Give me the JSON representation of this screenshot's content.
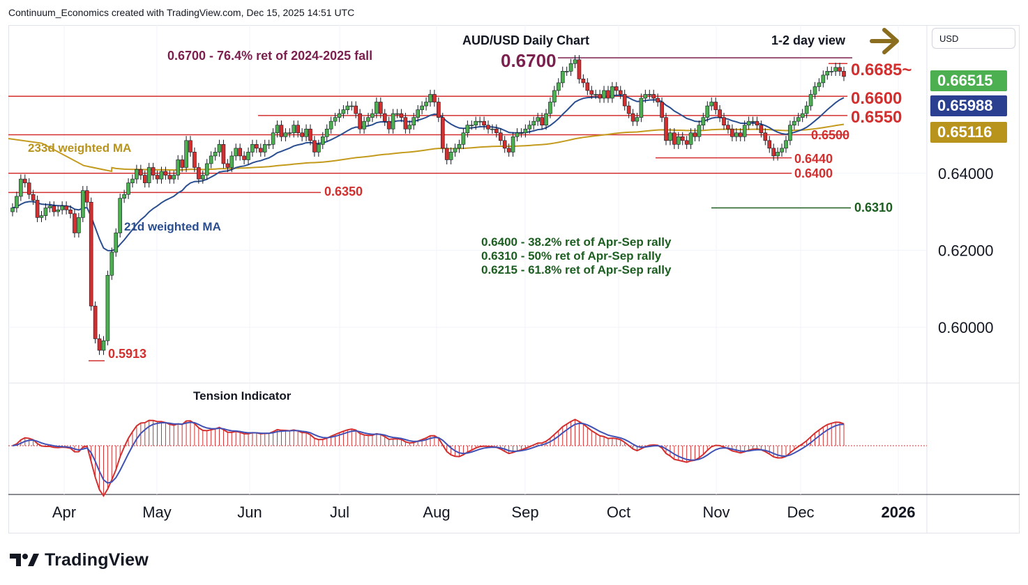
{
  "header": {
    "attribution": "Continuum_Economics created with TradingView.com, Dec 15, 2025 14:51 UTC"
  },
  "brand": {
    "name": "TradingView"
  },
  "price_scale": {
    "currency": "USD"
  },
  "chart_data": {
    "type": "candlestick",
    "title": "AUD/USD Daily Chart",
    "subtitle": "1-2 day view",
    "x_ticks": [
      "Apr",
      "May",
      "Jun",
      "Jul",
      "Aug",
      "Sep",
      "Oct",
      "Nov",
      "Dec",
      "2026"
    ],
    "y_ticks": [
      "0.64000",
      "0.62000",
      "0.60000"
    ],
    "y_tick_values": [
      0.64,
      0.62,
      0.6
    ],
    "ylim": [
      0.5855,
      0.6785
    ],
    "series": [
      {
        "name": "21d weighted MA",
        "color": "#2a4e8f"
      },
      {
        "name": "233d weighted MA",
        "color": "#c39a1c"
      }
    ],
    "price_badges": [
      {
        "label": "0.66515",
        "color": "#4caf50"
      },
      {
        "label": "0.65988",
        "color": "#2a3f8f"
      },
      {
        "label": "0.65116",
        "color": "#b8941c"
      }
    ],
    "levels": [
      {
        "value": 0.67,
        "label": "0.6700",
        "color": "#7b1f4f"
      },
      {
        "value": 0.6685,
        "label": "0.6685~",
        "color": "#d32f2f"
      },
      {
        "value": 0.66,
        "label": "0.6600",
        "color": "#d32f2f"
      },
      {
        "value": 0.655,
        "label": "0.6550",
        "color": "#d32f2f"
      },
      {
        "value": 0.65,
        "label": "0.6500",
        "color": "#d32f2f"
      },
      {
        "value": 0.644,
        "label": "0.6440",
        "color": "#d32f2f"
      },
      {
        "value": 0.64,
        "label": "0.6400",
        "color": "#d32f2f"
      },
      {
        "value": 0.635,
        "label": "0.6350",
        "color": "#d32f2f"
      },
      {
        "value": 0.631,
        "label": "0.6310",
        "color": "#1b5e20"
      },
      {
        "value": 0.5913,
        "label": "0.5913",
        "color": "#d32f2f"
      }
    ],
    "annotations": [
      "0.6700 - 76.4% ret of 2024-2025 fall",
      "0.6400 - 38.2% ret of Apr-Sep rally",
      "0.6310 - 50% ret of Apr-Sep rally",
      "0.6215 - 61.8% ret of Apr-Sep rally"
    ],
    "close": [
      0.631,
      0.634,
      0.6385,
      0.6375,
      0.6345,
      0.633,
      0.6285,
      0.629,
      0.631,
      0.6315,
      0.63,
      0.6305,
      0.6315,
      0.6305,
      0.6295,
      0.6245,
      0.6285,
      0.6355,
      0.6325,
      0.6055,
      0.597,
      0.594,
      0.5965,
      0.6135,
      0.6195,
      0.6245,
      0.6335,
      0.6345,
      0.6375,
      0.6385,
      0.641,
      0.6395,
      0.6375,
      0.6415,
      0.6395,
      0.6385,
      0.6405,
      0.6395,
      0.6385,
      0.6395,
      0.6435,
      0.6415,
      0.6485,
      0.6455,
      0.6415,
      0.6385,
      0.6395,
      0.6425,
      0.6445,
      0.6455,
      0.6475,
      0.6425,
      0.6415,
      0.6445,
      0.6465,
      0.6445,
      0.6435,
      0.6455,
      0.6475,
      0.6465,
      0.6455,
      0.6475,
      0.6475,
      0.6505,
      0.6525,
      0.6495,
      0.6505,
      0.6505,
      0.6525,
      0.6505,
      0.6495,
      0.6515,
      0.6485,
      0.6455,
      0.6475,
      0.6495,
      0.6515,
      0.6535,
      0.6545,
      0.6555,
      0.6565,
      0.6575,
      0.6575,
      0.6555,
      0.6515,
      0.6535,
      0.6545,
      0.6555,
      0.6585,
      0.6555,
      0.6535,
      0.6515,
      0.6555,
      0.6555,
      0.6545,
      0.6515,
      0.6525,
      0.6545,
      0.6565,
      0.6575,
      0.6585,
      0.6605,
      0.6585,
      0.6545,
      0.6465,
      0.6435,
      0.6455,
      0.6465,
      0.6475,
      0.6505,
      0.6525,
      0.6525,
      0.6535,
      0.6535,
      0.6525,
      0.6515,
      0.6515,
      0.6505,
      0.6485,
      0.6465,
      0.6455,
      0.6495,
      0.6505,
      0.6505,
      0.6515,
      0.6525,
      0.6535,
      0.6545,
      0.6525,
      0.6555,
      0.6585,
      0.6615,
      0.6635,
      0.6665,
      0.6665,
      0.6685,
      0.6695,
      0.6645,
      0.6635,
      0.6615,
      0.6605,
      0.6605,
      0.6595,
      0.6615,
      0.6595,
      0.6625,
      0.6615,
      0.6605,
      0.6575,
      0.6555,
      0.6535,
      0.6545,
      0.6595,
      0.6605,
      0.6605,
      0.6595,
      0.6585,
      0.6545,
      0.6485,
      0.6505,
      0.6475,
      0.6495,
      0.6485,
      0.6475,
      0.6505,
      0.6495,
      0.6525,
      0.6545,
      0.6575,
      0.6585,
      0.6565,
      0.6545,
      0.6525,
      0.6515,
      0.6495,
      0.6505,
      0.6495,
      0.6525,
      0.6535,
      0.6535,
      0.6525,
      0.6505,
      0.6485,
      0.6465,
      0.6445,
      0.6455,
      0.6465,
      0.6485,
      0.6525,
      0.6535,
      0.6545,
      0.6555,
      0.6575,
      0.6605,
      0.6625,
      0.6635,
      0.6655,
      0.6665,
      0.6665,
      0.6675,
      0.6665,
      0.66515
    ],
    "ma21_approx": "derived from close series",
    "tension_indicator": {
      "title": "Tension Indicator",
      "scale": "relative oscillator"
    }
  }
}
